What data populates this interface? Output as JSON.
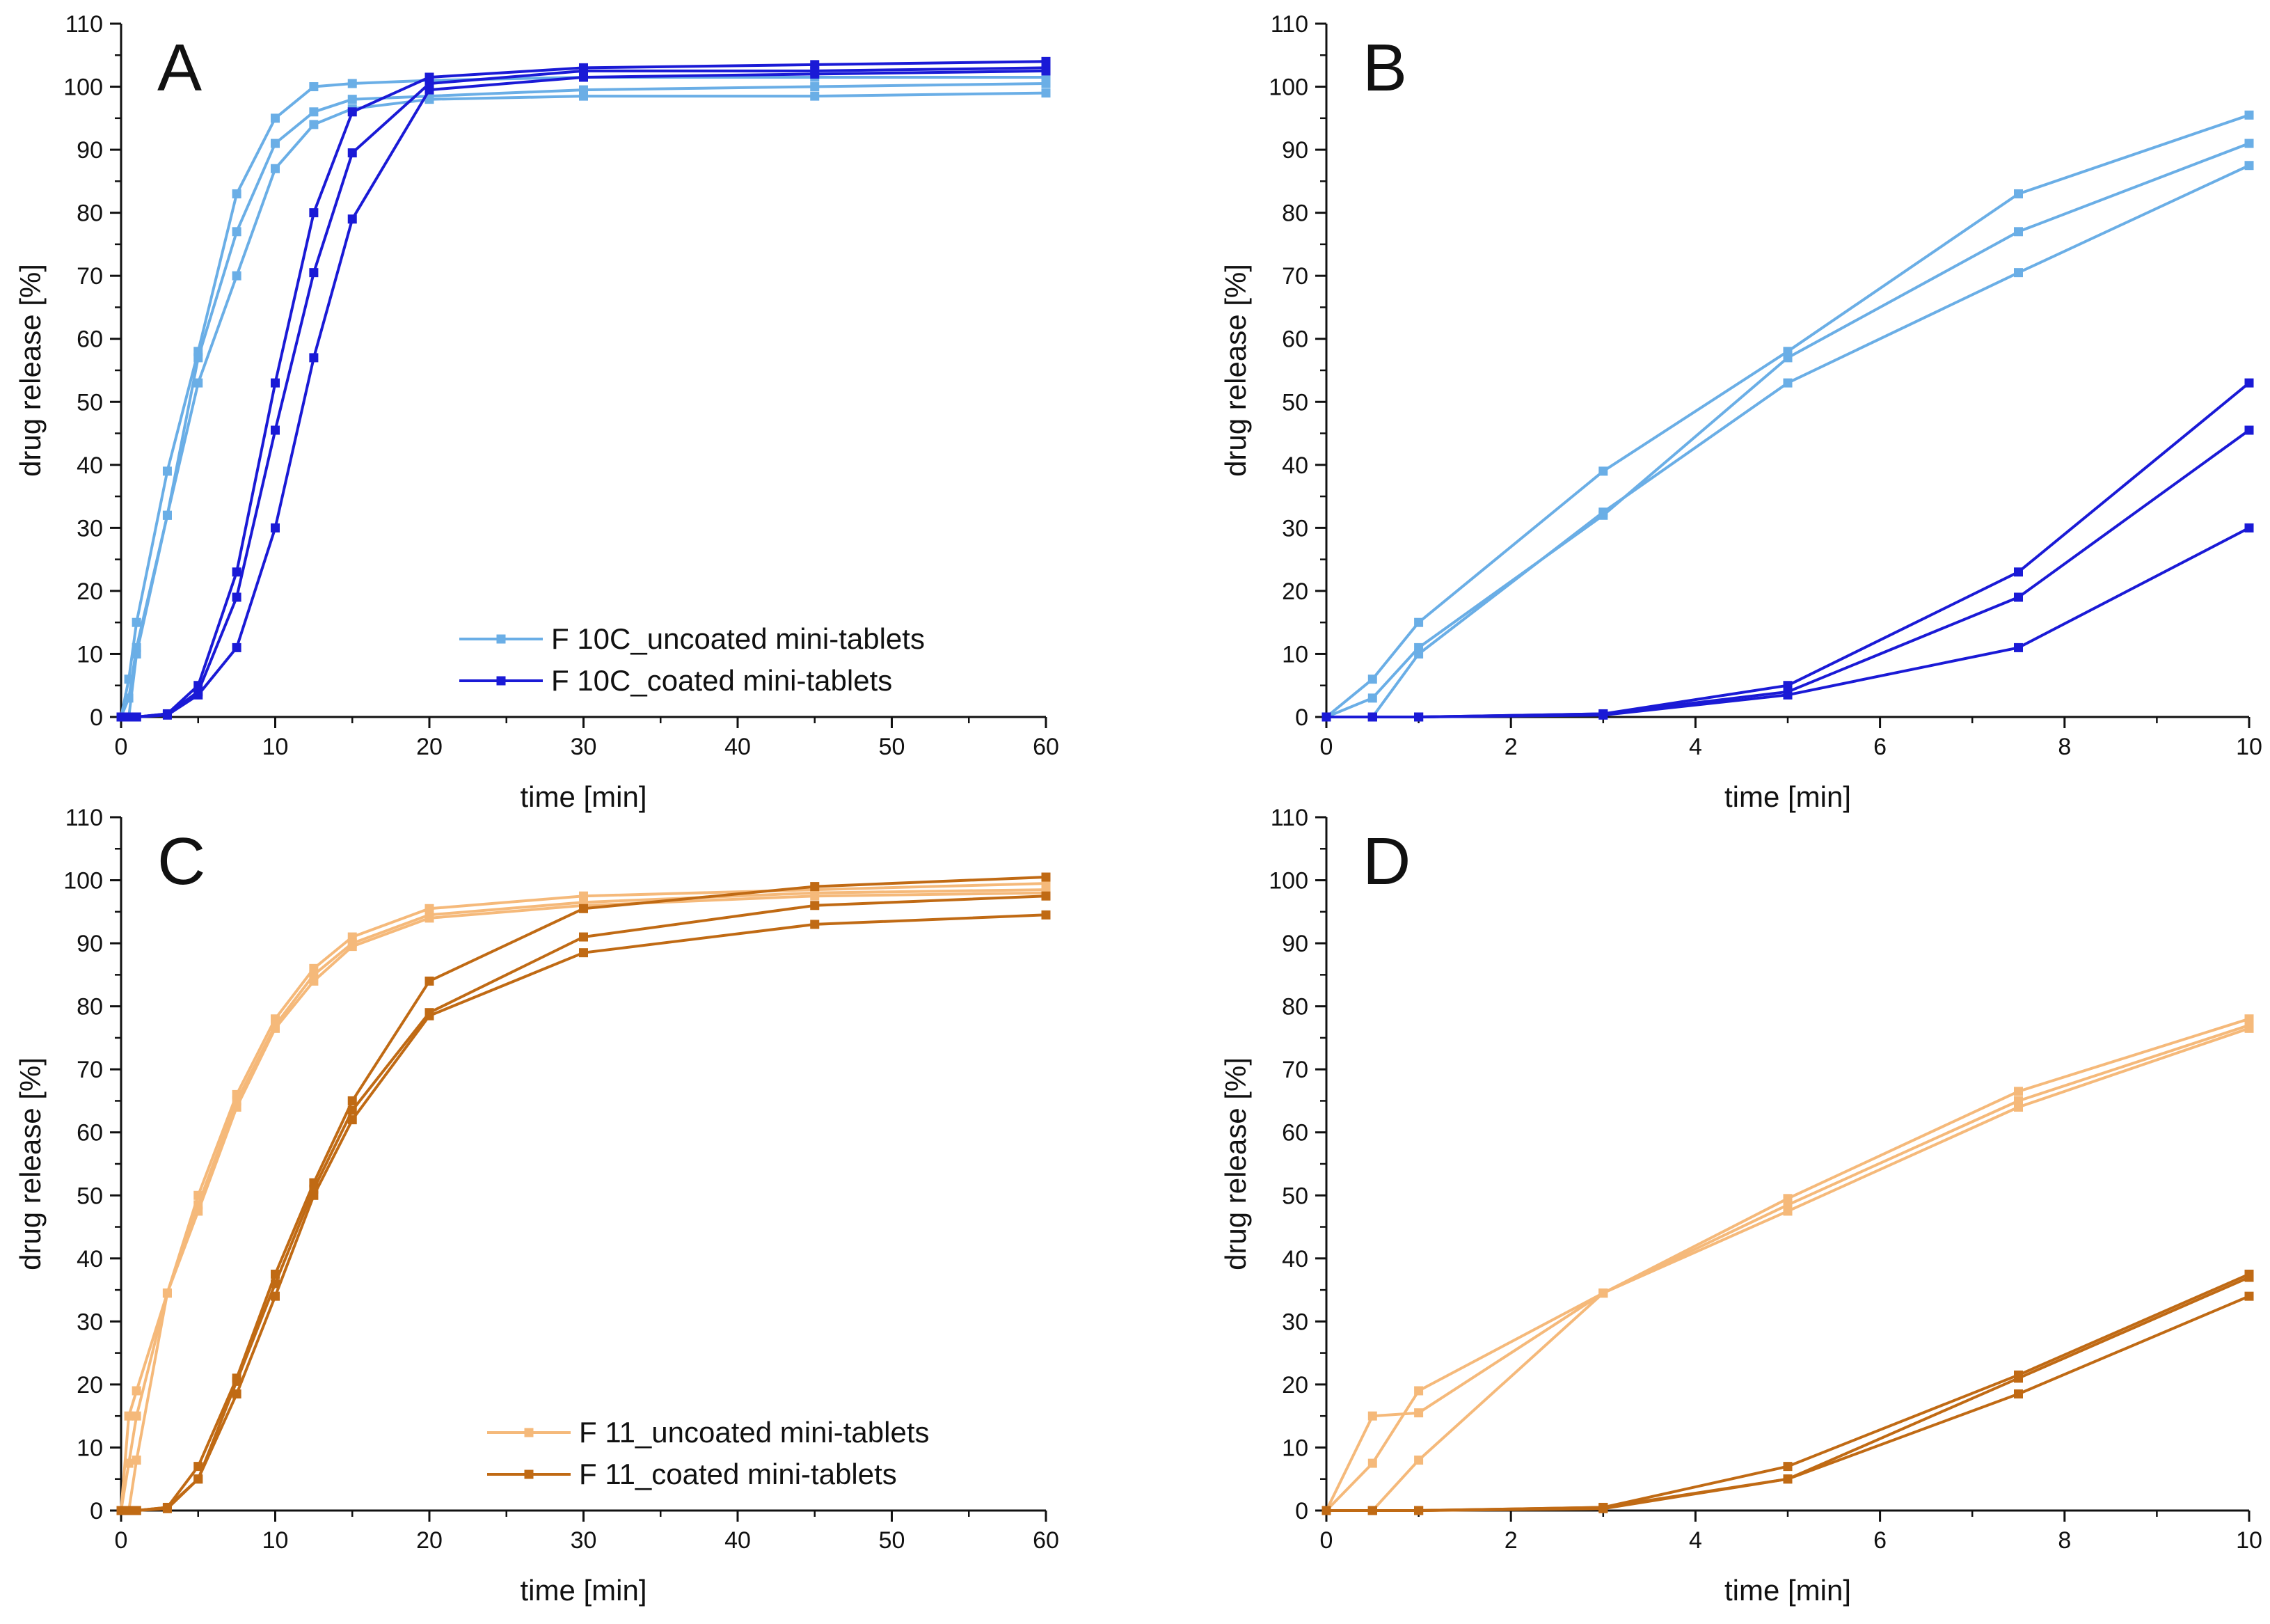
{
  "chart_data": [
    {
      "type": "line",
      "panel_label": "A",
      "xlabel": "time [min]",
      "ylabel": "drug release [%]",
      "xlim": [
        0,
        60
      ],
      "ylim": [
        0,
        110
      ],
      "x_ticks": [
        0,
        10,
        20,
        30,
        40,
        50,
        60
      ],
      "y_ticks": [
        0,
        10,
        20,
        30,
        40,
        50,
        60,
        70,
        80,
        90,
        100,
        110
      ],
      "legend": [
        "F 10C_uncoated mini-tablets",
        "F 10C_coated mini-tablets"
      ],
      "legend_position": "bottom-right",
      "series": [
        {
          "name": "F 10C_uncoated mini-tablets",
          "group": "uncoated",
          "color": "#6aaee6",
          "x": [
            0,
            0.5,
            1,
            3,
            5,
            7.5,
            10,
            12.5,
            15,
            20,
            30,
            45,
            60
          ],
          "values": [
            0,
            6,
            15,
            39,
            58,
            83,
            95,
            100,
            100.5,
            101,
            101.5,
            101.5,
            101.5
          ]
        },
        {
          "name": "F 10C_uncoated mini-tablets",
          "group": "uncoated",
          "color": "#6aaee6",
          "x": [
            0,
            0.5,
            1,
            3,
            5,
            7.5,
            10,
            12.5,
            15,
            20,
            30,
            45,
            60
          ],
          "values": [
            0,
            3,
            11,
            32,
            57,
            77,
            91,
            96,
            98,
            98.5,
            99.5,
            100,
            100.5
          ]
        },
        {
          "name": "F 10C_uncoated mini-tablets",
          "group": "uncoated",
          "color": "#6aaee6",
          "x": [
            0,
            0.5,
            1,
            3,
            5,
            7.5,
            10,
            12.5,
            15,
            20,
            30,
            45,
            60
          ],
          "values": [
            0,
            0,
            10,
            32,
            53,
            70,
            87,
            94,
            96.5,
            98,
            98.5,
            98.5,
            99
          ]
        },
        {
          "name": "F 10C_coated mini-tablets",
          "group": "coated",
          "color": "#1a1ad6",
          "x": [
            0,
            0.5,
            1,
            3,
            5,
            7.5,
            10,
            12.5,
            15,
            20,
            30,
            45,
            60
          ],
          "values": [
            0,
            0,
            0,
            0.5,
            5,
            23,
            53,
            80,
            96,
            101.5,
            103,
            103.5,
            104
          ]
        },
        {
          "name": "F 10C_coated mini-tablets",
          "group": "coated",
          "color": "#1a1ad6",
          "x": [
            0,
            0.5,
            1,
            3,
            5,
            7.5,
            10,
            12.5,
            15,
            20,
            30,
            45,
            60
          ],
          "values": [
            0,
            0,
            0,
            0.5,
            4,
            19,
            45.5,
            70.5,
            89.5,
            100.5,
            102.5,
            102.5,
            103
          ]
        },
        {
          "name": "F 10C_coated mini-tablets",
          "group": "coated",
          "color": "#1a1ad6",
          "x": [
            0,
            0.5,
            1,
            3,
            5,
            7.5,
            10,
            12.5,
            15,
            20,
            30,
            45,
            60
          ],
          "values": [
            0,
            0,
            0,
            0.3,
            3.5,
            11,
            30,
            57,
            79,
            99.5,
            101.5,
            102,
            102.5
          ]
        }
      ]
    },
    {
      "type": "line",
      "panel_label": "B",
      "xlabel": "time [min]",
      "ylabel": "drug release [%]",
      "xlim": [
        0,
        10
      ],
      "ylim": [
        0,
        110
      ],
      "x_ticks": [
        0,
        2,
        4,
        6,
        8,
        10
      ],
      "y_ticks": [
        0,
        10,
        20,
        30,
        40,
        50,
        60,
        70,
        80,
        90,
        100,
        110
      ],
      "legend": [],
      "series": [
        {
          "name": "F 10C_uncoated mini-tablets",
          "group": "uncoated",
          "color": "#6aaee6",
          "x": [
            0,
            0.5,
            1,
            3,
            5,
            7.5,
            10
          ],
          "values": [
            0,
            6,
            15,
            39,
            58,
            83,
            95.5
          ]
        },
        {
          "name": "F 10C_uncoated mini-tablets",
          "group": "uncoated",
          "color": "#6aaee6",
          "x": [
            0,
            0.5,
            1,
            3,
            5,
            7.5,
            10
          ],
          "values": [
            0,
            3,
            11,
            32,
            57,
            77,
            91
          ]
        },
        {
          "name": "F 10C_uncoated mini-tablets",
          "group": "uncoated",
          "color": "#6aaee6",
          "x": [
            0,
            0.5,
            1,
            3,
            5,
            7.5,
            10
          ],
          "values": [
            0,
            0,
            10,
            32.5,
            53,
            70.5,
            87.5
          ]
        },
        {
          "name": "F 10C_coated mini-tablets",
          "group": "coated",
          "color": "#1a1ad6",
          "x": [
            0,
            0.5,
            1,
            3,
            5,
            7.5,
            10
          ],
          "values": [
            0,
            0,
            0,
            0.5,
            5,
            23,
            53
          ]
        },
        {
          "name": "F 10C_coated mini-tablets",
          "group": "coated",
          "color": "#1a1ad6",
          "x": [
            0,
            0.5,
            1,
            3,
            5,
            7.5,
            10
          ],
          "values": [
            0,
            0,
            0,
            0.5,
            4,
            19,
            45.5
          ]
        },
        {
          "name": "F 10C_coated mini-tablets",
          "group": "coated",
          "color": "#1a1ad6",
          "x": [
            0,
            0.5,
            1,
            3,
            5,
            7.5,
            10
          ],
          "values": [
            0,
            0,
            0,
            0.3,
            3.5,
            11,
            30
          ]
        }
      ]
    },
    {
      "type": "line",
      "panel_label": "C",
      "xlabel": "time [min]",
      "ylabel": "drug release [%]",
      "xlim": [
        0,
        60
      ],
      "ylim": [
        0,
        110
      ],
      "x_ticks": [
        0,
        10,
        20,
        30,
        40,
        50,
        60
      ],
      "y_ticks": [
        0,
        10,
        20,
        30,
        40,
        50,
        60,
        70,
        80,
        90,
        100,
        110
      ],
      "legend": [
        "F 11_uncoated mini-tablets",
        "F 11_coated mini-tablets"
      ],
      "legend_position": "bottom-right",
      "series": [
        {
          "name": "F 11_uncoated mini-tablets",
          "group": "uncoated",
          "color": "#f5b97a",
          "x": [
            0,
            0.5,
            1,
            3,
            5,
            7.5,
            10,
            12.5,
            15,
            20,
            30,
            45,
            60
          ],
          "values": [
            0,
            15,
            19,
            34.5,
            50,
            66,
            78,
            86,
            91,
            95.5,
            97.5,
            98.5,
            99.5
          ]
        },
        {
          "name": "F 11_uncoated mini-tablets",
          "group": "uncoated",
          "color": "#f5b97a",
          "x": [
            0,
            0.5,
            1,
            3,
            5,
            7.5,
            10,
            12.5,
            15,
            20,
            30,
            45,
            60
          ],
          "values": [
            0,
            7.5,
            15,
            34.5,
            48.5,
            65,
            77,
            85,
            90,
            94.5,
            96.5,
            98,
            98.5
          ]
        },
        {
          "name": "F 11_uncoated mini-tablets",
          "group": "uncoated",
          "color": "#f5b97a",
          "x": [
            0,
            0.5,
            1,
            3,
            5,
            7.5,
            10,
            12.5,
            15,
            20,
            30,
            45,
            60
          ],
          "values": [
            0,
            0,
            8,
            34.5,
            47.5,
            64,
            76.5,
            84,
            89.5,
            94,
            96,
            97.5,
            98
          ]
        },
        {
          "name": "F 11_coated mini-tablets",
          "group": "coated",
          "color": "#c06a14",
          "x": [
            0,
            0.5,
            1,
            3,
            5,
            7.5,
            10,
            12.5,
            15,
            20,
            30,
            45,
            60
          ],
          "values": [
            0,
            0,
            0,
            0.5,
            7,
            21,
            37.5,
            52,
            65,
            84,
            95.5,
            99,
            100.5
          ]
        },
        {
          "name": "F 11_coated mini-tablets",
          "group": "coated",
          "color": "#c06a14",
          "x": [
            0,
            0.5,
            1,
            3,
            5,
            7.5,
            10,
            12.5,
            15,
            20,
            30,
            45,
            60
          ],
          "values": [
            0,
            0,
            0,
            0.5,
            5,
            20.5,
            36,
            51,
            63.5,
            79,
            91,
            96,
            97.5
          ]
        },
        {
          "name": "F 11_coated mini-tablets",
          "group": "coated",
          "color": "#c06a14",
          "x": [
            0,
            0.5,
            1,
            3,
            5,
            7.5,
            10,
            12.5,
            15,
            20,
            30,
            45,
            60
          ],
          "values": [
            0,
            0,
            0,
            0.3,
            5,
            18.5,
            34,
            50,
            62,
            78.5,
            88.5,
            93,
            94.5
          ]
        }
      ]
    },
    {
      "type": "line",
      "panel_label": "D",
      "xlabel": "time [min]",
      "ylabel": "drug release [%]",
      "xlim": [
        0,
        10
      ],
      "ylim": [
        0,
        110
      ],
      "x_ticks": [
        0,
        2,
        4,
        6,
        8,
        10
      ],
      "y_ticks": [
        0,
        10,
        20,
        30,
        40,
        50,
        60,
        70,
        80,
        90,
        100,
        110
      ],
      "legend": [],
      "series": [
        {
          "name": "F 11_uncoated mini-tablets",
          "group": "uncoated",
          "color": "#f5b97a",
          "x": [
            0,
            0.5,
            1,
            3,
            5,
            7.5,
            10
          ],
          "values": [
            0,
            15,
            15.5,
            34.5,
            49.5,
            66.5,
            78
          ]
        },
        {
          "name": "F 11_uncoated mini-tablets",
          "group": "uncoated",
          "color": "#f5b97a",
          "x": [
            0,
            0.5,
            1,
            3,
            5,
            7.5,
            10
          ],
          "values": [
            0,
            7.5,
            19,
            34.5,
            48.5,
            65,
            77
          ]
        },
        {
          "name": "F 11_uncoated mini-tablets",
          "group": "uncoated",
          "color": "#f5b97a",
          "x": [
            0,
            0.5,
            1,
            3,
            5,
            7.5,
            10
          ],
          "values": [
            0,
            0,
            8,
            34.5,
            47.5,
            64,
            76.5
          ]
        },
        {
          "name": "F 11_coated mini-tablets",
          "group": "coated",
          "color": "#c06a14",
          "x": [
            0,
            0.5,
            1,
            3,
            5,
            7.5,
            10
          ],
          "values": [
            0,
            0,
            0,
            0.5,
            7,
            21.5,
            37.5
          ]
        },
        {
          "name": "F 11_coated mini-tablets",
          "group": "coated",
          "color": "#c06a14",
          "x": [
            0,
            0.5,
            1,
            3,
            5,
            7.5,
            10
          ],
          "values": [
            0,
            0,
            0,
            0.5,
            5,
            21,
            37
          ]
        },
        {
          "name": "F 11_coated mini-tablets",
          "group": "coated",
          "color": "#c06a14",
          "x": [
            0,
            0.5,
            1,
            3,
            5,
            7.5,
            10
          ],
          "values": [
            0,
            0,
            0,
            0.3,
            5,
            18.5,
            34
          ]
        }
      ]
    }
  ]
}
